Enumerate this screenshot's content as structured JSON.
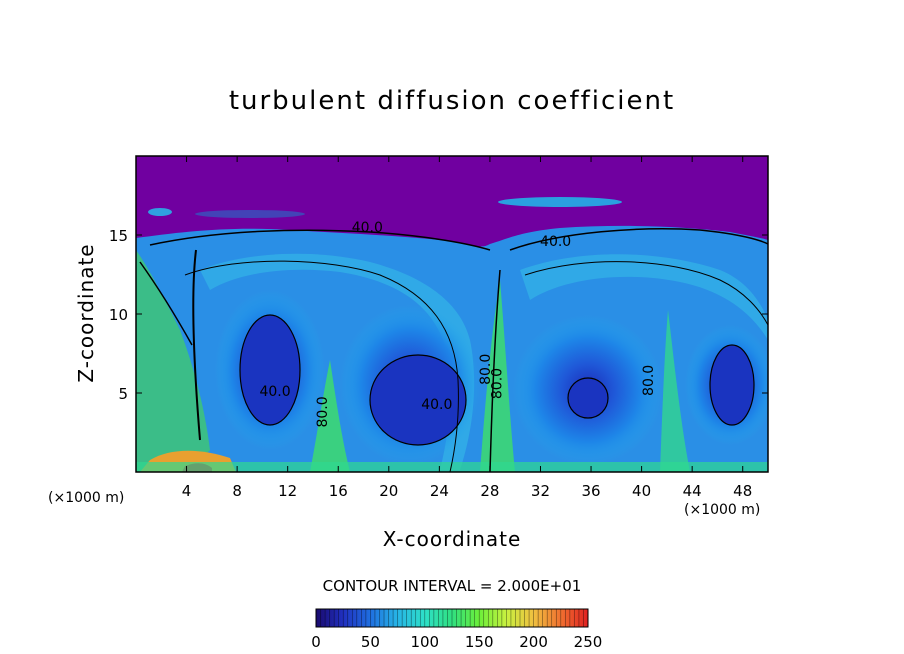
{
  "chart_data": {
    "type": "heatmap",
    "title": "turbulent diffusion coefficient",
    "xlabel": "X-coordinate",
    "ylabel": "Z-coordinate",
    "x_unit_label": "(×1000 m)",
    "x_unit_label_right": "(×1000 m)",
    "xlim": [
      0,
      50
    ],
    "ylim": [
      0,
      20
    ],
    "x_ticks": [
      4,
      8,
      12,
      16,
      20,
      24,
      28,
      32,
      36,
      40,
      44,
      48
    ],
    "y_ticks": [
      5,
      10,
      15
    ],
    "contour_interval_text": "CONTOUR INTERVAL = 2.000E+01",
    "contour_labels": [
      {
        "text": "40.0",
        "x": 18.3,
        "z": 15.2
      },
      {
        "text": "40.0",
        "x": 33.2,
        "z": 14.3
      },
      {
        "text": "40.0",
        "x": 11.0,
        "z": 4.8
      },
      {
        "text": "40.0",
        "x": 23.8,
        "z": 4.0
      },
      {
        "text": "80.0",
        "x": 15.1,
        "z": 3.8
      },
      {
        "text": "80.0",
        "x": 28.0,
        "z": 6.5
      },
      {
        "text": "80.0",
        "x": 28.9,
        "z": 5.6
      },
      {
        "text": "80.0",
        "x": 40.9,
        "z": 5.8
      }
    ],
    "colorbar": {
      "min": 0,
      "max": 250,
      "ticks": [
        "0",
        "50",
        "100",
        "150",
        "200",
        "250"
      ],
      "colors": [
        "#1a0a6e",
        "#2030c0",
        "#1f6fe0",
        "#27b5e6",
        "#2ee0c8",
        "#30e080",
        "#6cef3a",
        "#c8f040",
        "#f0c040",
        "#f07030",
        "#e02020"
      ]
    },
    "background_color": "#7000a0",
    "vortices": [
      {
        "x": 10.5,
        "z": 6.5,
        "value": 20
      },
      {
        "x": 21.5,
        "z": 4.5,
        "value": 20
      },
      {
        "x": 35.5,
        "z": 4.5,
        "value": 20
      },
      {
        "x": 46.5,
        "z": 5.0,
        "value": 25
      }
    ]
  }
}
